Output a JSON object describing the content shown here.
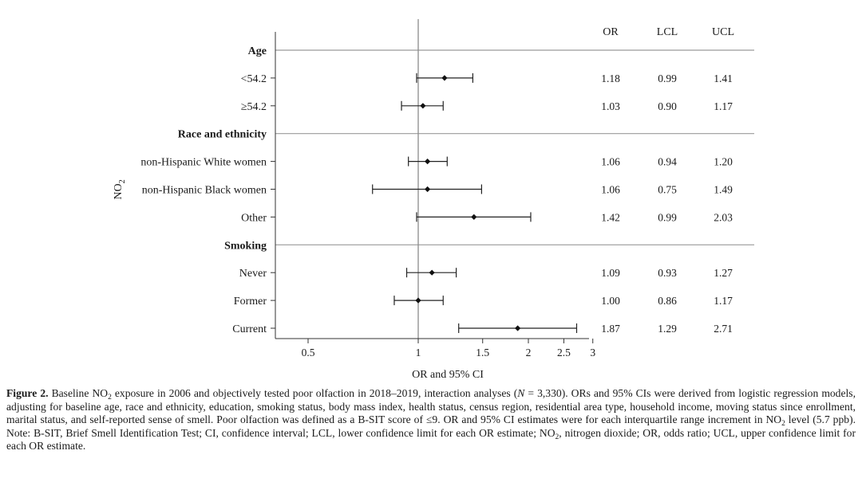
{
  "chart_data": {
    "type": "forest",
    "xscale": "log",
    "xlim": [
      0.42,
      3.3
    ],
    "xticks": [
      {
        "value": 0.5,
        "label": "0.5"
      },
      {
        "value": 1,
        "label": "1"
      },
      {
        "value": 1.5,
        "label": "1.5"
      },
      {
        "value": 2,
        "label": "2"
      },
      {
        "value": 2.5,
        "label": "2.5"
      },
      {
        "value": 3,
        "label": "3"
      }
    ],
    "reference_line": 1,
    "xlabel": "OR and 95% CI",
    "ylabel": "NO",
    "ylabel_sub": "2",
    "column_headers": [
      "OR",
      "LCL",
      "UCL"
    ],
    "groups": [
      {
        "name": "Age",
        "rows": [
          {
            "label": "<54.2",
            "or": 1.18,
            "lcl": 0.99,
            "ucl": 1.41,
            "or_text": "1.18",
            "lcl_text": "0.99",
            "ucl_text": "1.41"
          },
          {
            "label": "≥54.2",
            "or": 1.03,
            "lcl": 0.9,
            "ucl": 1.17,
            "or_text": "1.03",
            "lcl_text": "0.90",
            "ucl_text": "1.17"
          }
        ]
      },
      {
        "name": "Race and ethnicity",
        "rows": [
          {
            "label": "non-Hispanic White women",
            "or": 1.06,
            "lcl": 0.94,
            "ucl": 1.2,
            "or_text": "1.06",
            "lcl_text": "0.94",
            "ucl_text": "1.20"
          },
          {
            "label": "non-Hispanic Black women",
            "or": 1.06,
            "lcl": 0.75,
            "ucl": 1.49,
            "or_text": "1.06",
            "lcl_text": "0.75",
            "ucl_text": "1.49"
          },
          {
            "label": "Other",
            "or": 1.42,
            "lcl": 0.99,
            "ucl": 2.03,
            "or_text": "1.42",
            "lcl_text": "0.99",
            "ucl_text": "2.03"
          }
        ]
      },
      {
        "name": "Smoking",
        "rows": [
          {
            "label": "Never",
            "or": 1.09,
            "lcl": 0.93,
            "ucl": 1.27,
            "or_text": "1.09",
            "lcl_text": "0.93",
            "ucl_text": "1.27"
          },
          {
            "label": "Former",
            "or": 1.0,
            "lcl": 0.86,
            "ucl": 1.17,
            "or_text": "1.00",
            "lcl_text": "0.86",
            "ucl_text": "1.17"
          },
          {
            "label": "Current",
            "or": 1.87,
            "lcl": 1.29,
            "ucl": 2.71,
            "or_text": "1.87",
            "lcl_text": "1.29",
            "ucl_text": "2.71"
          }
        ]
      }
    ]
  },
  "caption": {
    "label": "Figure 2.",
    "p1": " Baseline NO",
    "s1": "2",
    "p2": " exposure in 2006 and objectively tested poor olfaction in 2018–2019, interaction analyses (",
    "n_symbol": "N",
    "p3": " = 3,330). ORs and 95% CIs were derived from logistic regression models, adjusting for baseline age, race and ethnicity, education, smoking status, body mass index, health status, census region, residential area type, household income, moving status since enrollment, marital status, and self-reported sense of smell. Poor olfaction was defined as a B-SIT score of ≤9. OR and 95% CI estimates were for each interquartile range increment in NO",
    "s2": "2",
    "p4": " level (5.7 ppb). Note: B-SIT, Brief Smell Identification Test; CI, confidence interval; LCL, lower confidence limit for each OR estimate; NO",
    "s3": "2",
    "p5": ", nitrogen dioxide; OR, odds ratio; UCL, upper confidence limit for each OR estimate."
  }
}
